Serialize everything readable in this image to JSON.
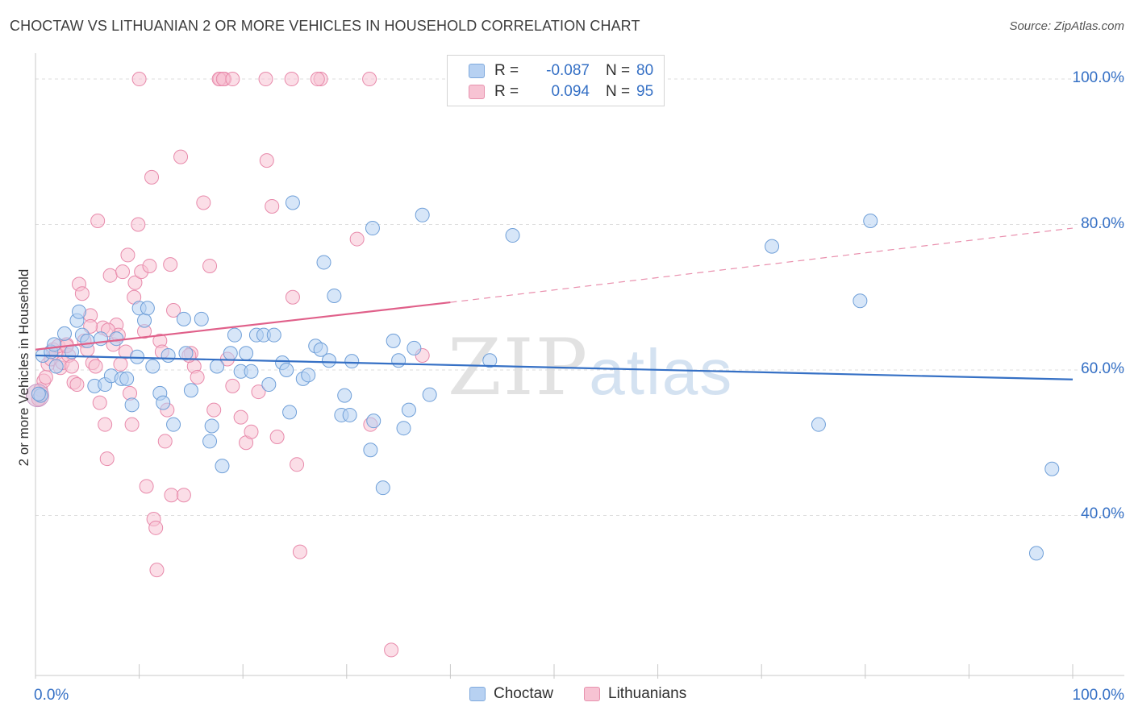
{
  "title": "CHOCTAW VS LITHUANIAN 2 OR MORE VEHICLES IN HOUSEHOLD CORRELATION CHART",
  "source": "Source: ZipAtlas.com",
  "watermark": {
    "zip": "ZIP",
    "atlas": "atlas"
  },
  "legend": {
    "rows": [
      {
        "r_label": "R =",
        "r_value": "-0.087",
        "n_label": "N =",
        "n_value": "80",
        "color": "#b7d1f2"
      },
      {
        "r_label": "R =",
        "r_value": "0.094",
        "n_label": "N =",
        "n_value": "95",
        "color": "#f7c3d3"
      }
    ]
  },
  "bottom_legend": {
    "choctaw": "Choctaw",
    "lithuanians": "Lithuanians"
  },
  "colors": {
    "blue": "#3570c5",
    "blue_fill": "#b7d1f2",
    "pink": "#e0608a",
    "pink_fill": "#f7c3d3",
    "grid": "#dcdcdc"
  },
  "chart_data": {
    "type": "scatter",
    "title": "CHOCTAW VS LITHUANIAN 2 OR MORE VEHICLES IN HOUSEHOLD CORRELATION CHART",
    "xlabel": "",
    "ylabel": "2 or more Vehicles in Household",
    "xlim": [
      0,
      100
    ],
    "ylim": [
      18,
      102
    ],
    "x_tick_labels": [
      "0.0%",
      "100.0%"
    ],
    "y_ticks": [
      40,
      60,
      80,
      100
    ],
    "y_tick_labels": [
      "40.0%",
      "60.0%",
      "80.0%",
      "100.0%"
    ],
    "grid": true,
    "legend_position": "top-center",
    "series": [
      {
        "name": "Choctaw",
        "color": "#3570c5",
        "trend": {
          "x": [
            0,
            100
          ],
          "y": [
            62.0,
            58.7
          ],
          "style": "solid"
        },
        "points": [
          [
            0.5,
            56.5
          ],
          [
            0.7,
            62.0
          ],
          [
            1.5,
            62.5
          ],
          [
            1.8,
            63.5
          ],
          [
            2.0,
            60.5
          ],
          [
            2.8,
            65.0
          ],
          [
            3.5,
            62.5
          ],
          [
            4.0,
            66.8
          ],
          [
            4.2,
            68.0
          ],
          [
            4.5,
            64.8
          ],
          [
            5.0,
            64.0
          ],
          [
            5.7,
            57.8
          ],
          [
            6.3,
            64.3
          ],
          [
            6.7,
            58.0
          ],
          [
            7.3,
            59.2
          ],
          [
            7.8,
            64.3
          ],
          [
            8.3,
            58.8
          ],
          [
            8.8,
            58.8
          ],
          [
            9.3,
            55.2
          ],
          [
            9.8,
            61.8
          ],
          [
            10.0,
            68.5
          ],
          [
            10.5,
            66.8
          ],
          [
            10.8,
            68.5
          ],
          [
            11.3,
            60.5
          ],
          [
            12.0,
            56.8
          ],
          [
            12.3,
            55.5
          ],
          [
            12.8,
            62.0
          ],
          [
            13.3,
            52.5
          ],
          [
            14.3,
            67.0
          ],
          [
            14.5,
            62.3
          ],
          [
            15.0,
            57.2
          ],
          [
            16.0,
            67.0
          ],
          [
            16.8,
            50.2
          ],
          [
            17.0,
            52.3
          ],
          [
            17.5,
            60.5
          ],
          [
            18.0,
            46.8
          ],
          [
            18.8,
            62.3
          ],
          [
            19.2,
            64.8
          ],
          [
            19.8,
            59.8
          ],
          [
            20.3,
            62.3
          ],
          [
            20.8,
            59.8
          ],
          [
            21.3,
            64.8
          ],
          [
            22.0,
            64.8
          ],
          [
            22.5,
            58.0
          ],
          [
            23.0,
            64.8
          ],
          [
            23.8,
            61.0
          ],
          [
            24.2,
            60.0
          ],
          [
            24.5,
            54.2
          ],
          [
            24.8,
            83.0
          ],
          [
            25.8,
            58.8
          ],
          [
            26.3,
            59.3
          ],
          [
            27.0,
            63.3
          ],
          [
            27.5,
            62.8
          ],
          [
            27.8,
            74.8
          ],
          [
            28.3,
            61.3
          ],
          [
            28.8,
            70.2
          ],
          [
            29.5,
            53.8
          ],
          [
            29.8,
            56.5
          ],
          [
            30.3,
            53.8
          ],
          [
            30.5,
            61.2
          ],
          [
            32.5,
            79.5
          ],
          [
            32.3,
            49.0
          ],
          [
            32.6,
            53.0
          ],
          [
            33.5,
            43.8
          ],
          [
            34.5,
            64.0
          ],
          [
            35.0,
            61.3
          ],
          [
            35.5,
            52.0
          ],
          [
            36.0,
            54.5
          ],
          [
            36.5,
            63.0
          ],
          [
            37.3,
            81.3
          ],
          [
            38.0,
            56.6
          ],
          [
            43.8,
            61.3
          ],
          [
            46.0,
            78.5
          ],
          [
            71.0,
            77.0
          ],
          [
            75.5,
            52.5
          ],
          [
            79.5,
            69.5
          ],
          [
            80.5,
            80.5
          ],
          [
            96.5,
            34.8
          ],
          [
            98.0,
            46.4
          ],
          [
            0.3,
            56.7
          ]
        ]
      },
      {
        "name": "Lithuanians",
        "color": "#e0608a",
        "trend": {
          "x": [
            0,
            40
          ],
          "y": [
            62.8,
            69.3
          ],
          "style": "solid",
          "dash_extension": {
            "x": [
              40,
              100
            ],
            "y": [
              69.3,
              79.5
            ]
          }
        },
        "points": [
          [
            0.3,
            56.0
          ],
          [
            0.5,
            57.3
          ],
          [
            0.8,
            58.5
          ],
          [
            1.0,
            59.0
          ],
          [
            1.2,
            60.8
          ],
          [
            1.5,
            61.5
          ],
          [
            1.7,
            62.8
          ],
          [
            2.0,
            62.3
          ],
          [
            2.2,
            63.3
          ],
          [
            2.4,
            60.3
          ],
          [
            2.6,
            61.0
          ],
          [
            3.0,
            63.5
          ],
          [
            3.2,
            62.0
          ],
          [
            3.5,
            60.5
          ],
          [
            3.7,
            58.3
          ],
          [
            4.0,
            58.0
          ],
          [
            4.2,
            71.8
          ],
          [
            4.5,
            70.5
          ],
          [
            4.7,
            64.0
          ],
          [
            5.0,
            62.8
          ],
          [
            5.3,
            67.5
          ],
          [
            5.5,
            61.0
          ],
          [
            5.8,
            60.5
          ],
          [
            6.0,
            80.5
          ],
          [
            6.2,
            55.5
          ],
          [
            6.5,
            65.8
          ],
          [
            6.7,
            52.5
          ],
          [
            6.9,
            47.8
          ],
          [
            7.2,
            73.0
          ],
          [
            7.5,
            63.5
          ],
          [
            7.8,
            66.2
          ],
          [
            8.0,
            64.8
          ],
          [
            8.2,
            60.8
          ],
          [
            8.4,
            73.5
          ],
          [
            8.7,
            62.5
          ],
          [
            8.9,
            75.8
          ],
          [
            9.1,
            56.8
          ],
          [
            9.3,
            52.5
          ],
          [
            9.6,
            72.0
          ],
          [
            9.9,
            80.0
          ],
          [
            10.2,
            73.5
          ],
          [
            10.5,
            65.3
          ],
          [
            10.7,
            44.0
          ],
          [
            11.0,
            74.3
          ],
          [
            11.2,
            86.5
          ],
          [
            11.4,
            39.5
          ],
          [
            11.6,
            38.3
          ],
          [
            11.7,
            32.5
          ],
          [
            12.0,
            64.0
          ],
          [
            12.2,
            62.5
          ],
          [
            12.5,
            50.2
          ],
          [
            12.7,
            54.5
          ],
          [
            13.0,
            74.5
          ],
          [
            13.1,
            42.8
          ],
          [
            13.3,
            68.2
          ],
          [
            14.0,
            89.3
          ],
          [
            14.3,
            42.8
          ],
          [
            15.0,
            62.3
          ],
          [
            15.3,
            60.5
          ],
          [
            15.6,
            59.0
          ],
          [
            16.2,
            83.0
          ],
          [
            16.8,
            74.3
          ],
          [
            17.2,
            54.5
          ],
          [
            17.8,
            100.0
          ],
          [
            18.2,
            100.0
          ],
          [
            18.5,
            61.5
          ],
          [
            19.0,
            57.8
          ],
          [
            19.8,
            53.5
          ],
          [
            20.3,
            50.0
          ],
          [
            20.8,
            51.5
          ],
          [
            21.5,
            57.0
          ],
          [
            22.3,
            88.8
          ],
          [
            22.8,
            82.5
          ],
          [
            23.3,
            50.8
          ],
          [
            24.8,
            70.0
          ],
          [
            25.2,
            47.0
          ],
          [
            25.5,
            35.0
          ],
          [
            27.5,
            100.0
          ],
          [
            31.0,
            78.0
          ],
          [
            32.3,
            52.5
          ],
          [
            34.3,
            21.5
          ],
          [
            37.3,
            62.0
          ],
          [
            10.0,
            100.0
          ],
          [
            17.7,
            100.0
          ],
          [
            18.1,
            100.0
          ],
          [
            19.0,
            100.0
          ],
          [
            22.2,
            100.0
          ],
          [
            24.7,
            100.0
          ],
          [
            27.2,
            100.0
          ],
          [
            32.2,
            100.0
          ],
          [
            14.8,
            62.0
          ],
          [
            9.5,
            70.0
          ],
          [
            7.0,
            65.5
          ],
          [
            5.3,
            66.0
          ],
          [
            3.0,
            63.3
          ]
        ]
      }
    ]
  }
}
